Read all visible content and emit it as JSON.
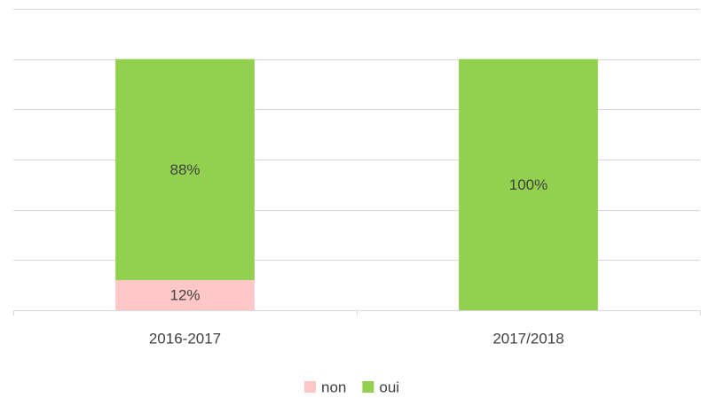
{
  "chart_data": {
    "type": "stacked_bar",
    "categories": [
      "2016-2017",
      "2017/2018"
    ],
    "series": [
      {
        "name": "non",
        "color": "#ffc7c7",
        "values": [
          12,
          0
        ],
        "value_labels": [
          "12%",
          null
        ]
      },
      {
        "name": "oui",
        "color": "#92d050",
        "values": [
          88,
          100
        ],
        "value_labels": [
          "88%",
          "100%"
        ]
      }
    ],
    "ylim": [
      0,
      120
    ],
    "yticks": [
      0,
      20,
      40,
      60,
      80,
      100,
      120
    ],
    "grid": true,
    "legend": "bottom"
  }
}
